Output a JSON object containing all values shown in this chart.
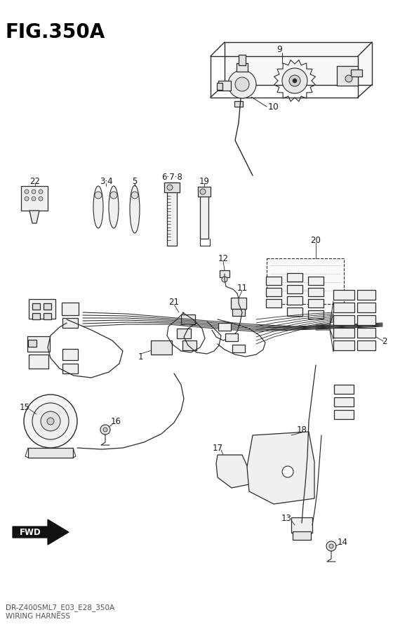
{
  "title": "FIG.350A",
  "footer_line1": "DR-Z400SML7_E03_E28_350A",
  "footer_line2": "WIRING HARNESS",
  "bg_color": "#ffffff",
  "title_fontsize": 20,
  "title_weight": "bold",
  "title_color": "#000000",
  "footer_fontsize": 7.5,
  "fig_width": 5.6,
  "fig_height": 8.96,
  "lc": "#2a2a2a",
  "lw": 0.9
}
